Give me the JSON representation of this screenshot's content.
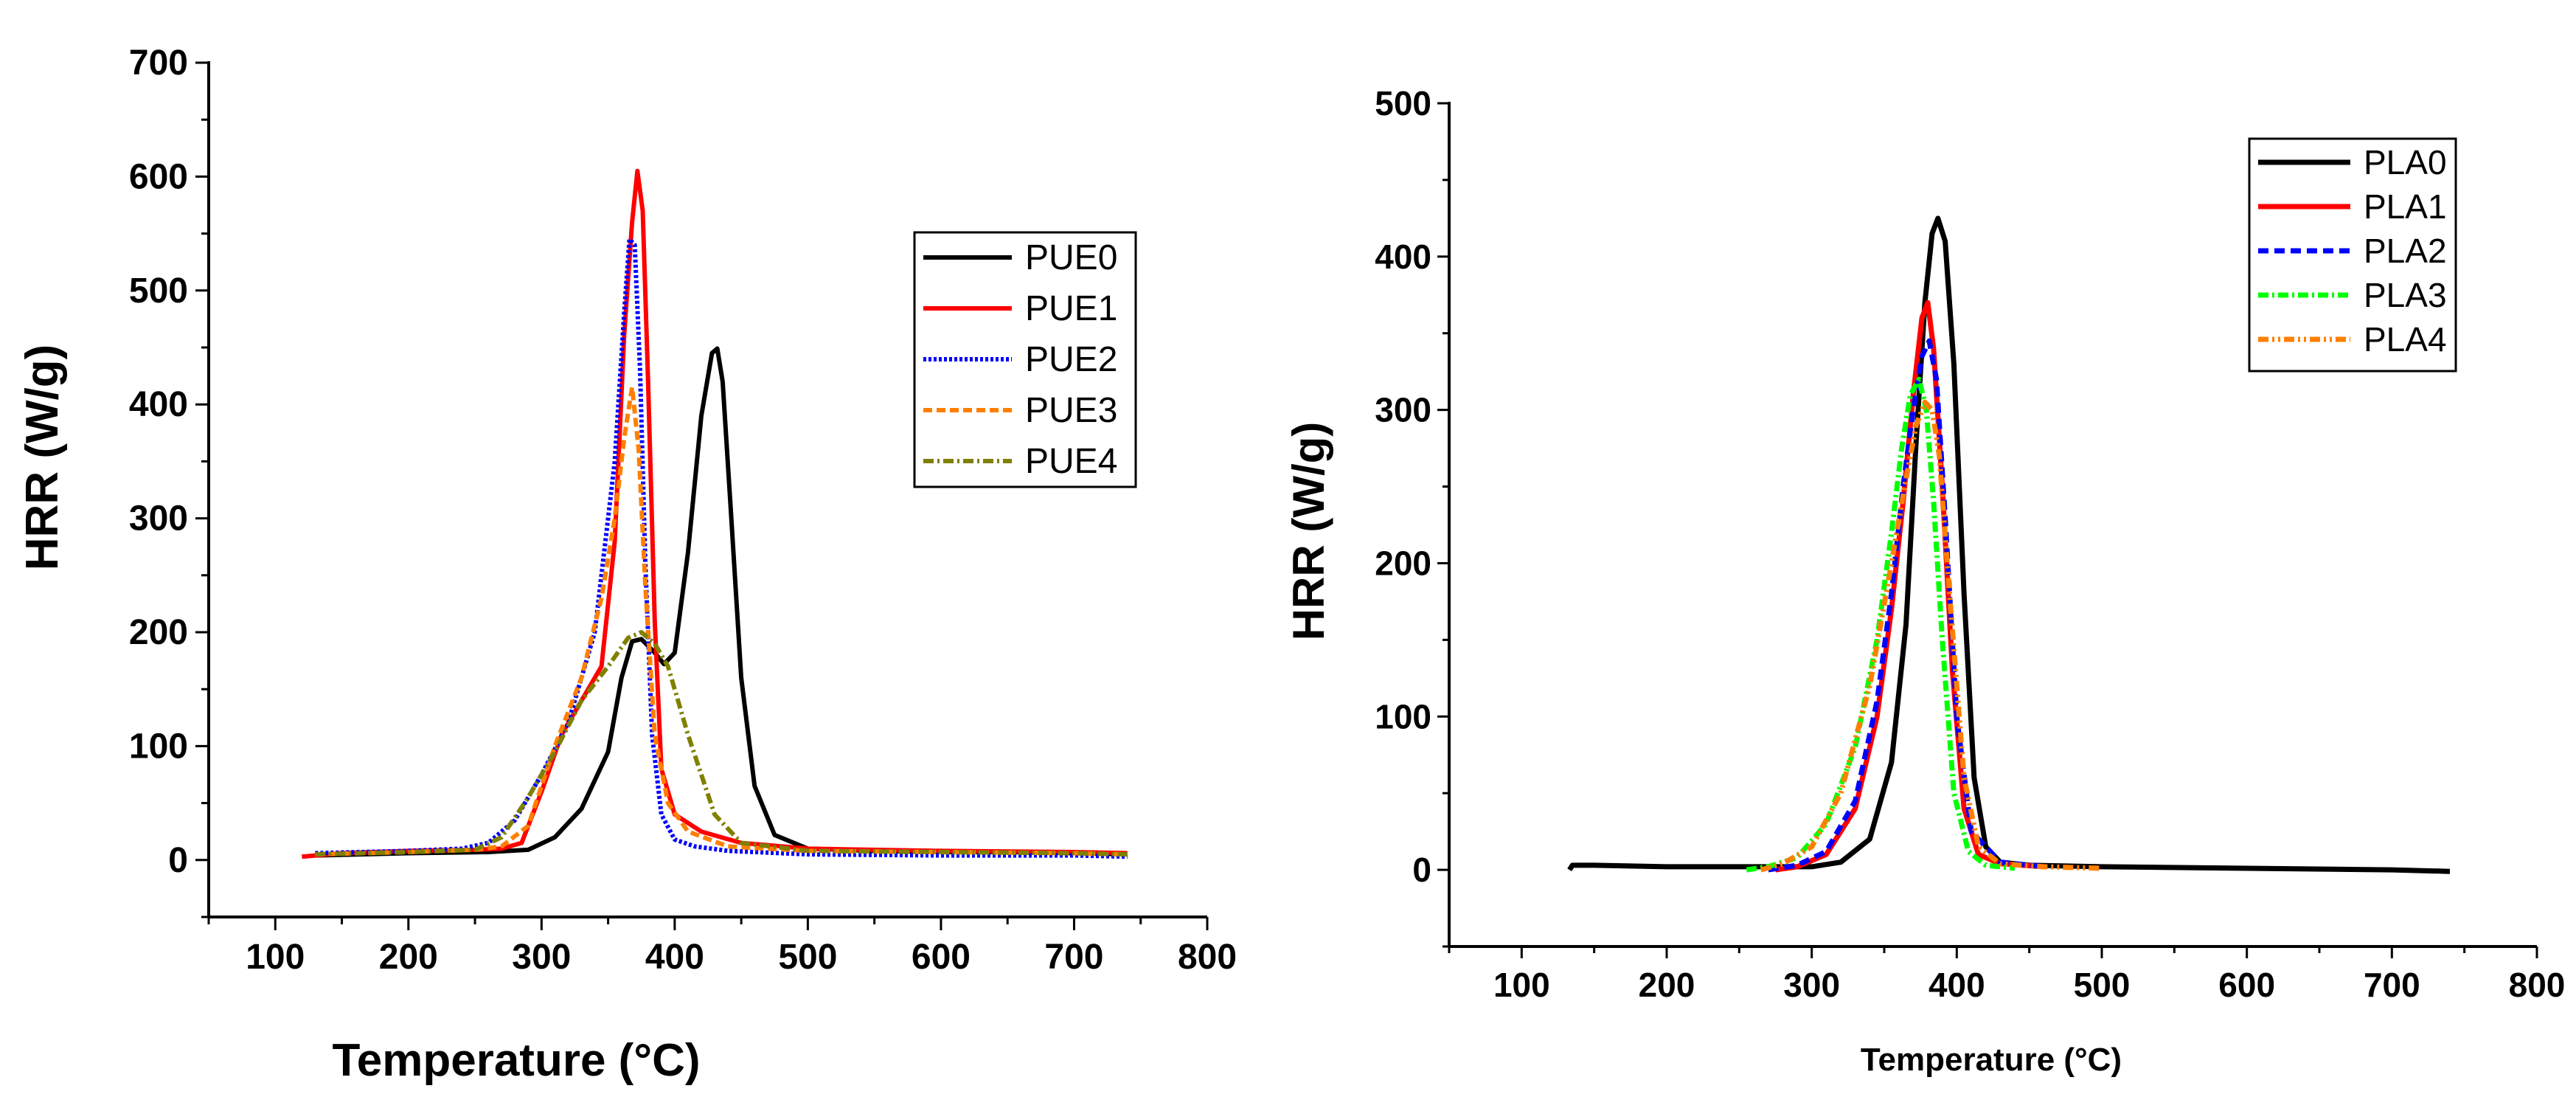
{
  "chart_data": [
    {
      "type": "line",
      "title": "",
      "xlabel": "Temperature (°C)",
      "ylabel": "HRR (W/g)",
      "xlim": [
        50,
        800
      ],
      "ylim": [
        -50,
        700
      ],
      "xticks": [
        100,
        200,
        300,
        400,
        500,
        600,
        700,
        800
      ],
      "yticks": [
        0,
        100,
        200,
        300,
        400,
        500,
        600,
        700
      ],
      "xtick_labels": [
        "100",
        "200",
        "300",
        "400",
        "500",
        "600",
        "700",
        "800"
      ],
      "ytick_labels": [
        "0",
        "100",
        "200",
        "300",
        "400",
        "500",
        "600",
        "700"
      ],
      "legend_position": "upper-right",
      "grid": false,
      "series": [
        {
          "name": "PUE0",
          "color": "#000000",
          "dash": "solid",
          "x": [
            130,
            200,
            260,
            290,
            310,
            330,
            350,
            360,
            368,
            375,
            385,
            392,
            400,
            410,
            420,
            428,
            432,
            436,
            442,
            450,
            460,
            475,
            500,
            550,
            600,
            650,
            700,
            740
          ],
          "y": [
            4,
            6,
            7,
            9,
            20,
            45,
            95,
            160,
            192,
            194,
            182,
            172,
            182,
            270,
            390,
            445,
            449,
            420,
            310,
            160,
            65,
            22,
            10,
            8,
            7,
            7,
            6,
            5
          ]
        },
        {
          "name": "PUE1",
          "color": "#ff0000",
          "dash": "solid",
          "x": [
            120,
            150,
            200,
            250,
            270,
            285,
            300,
            315,
            330,
            345,
            355,
            362,
            368,
            372,
            376,
            380,
            385,
            390,
            400,
            420,
            450,
            500,
            600,
            700,
            740
          ],
          "y": [
            3,
            6,
            8,
            9,
            10,
            15,
            60,
            110,
            140,
            170,
            280,
            460,
            560,
            605,
            570,
            420,
            210,
            80,
            40,
            25,
            15,
            10,
            8,
            7,
            6
          ]
        },
        {
          "name": "PUE2",
          "color": "#0000ff",
          "dash": "4,3",
          "x": [
            130,
            200,
            240,
            260,
            280,
            300,
            320,
            340,
            355,
            362,
            366,
            370,
            374,
            378,
            383,
            390,
            400,
            415,
            440,
            500,
            600,
            700,
            740
          ],
          "y": [
            6,
            8,
            10,
            15,
            35,
            75,
            120,
            200,
            350,
            480,
            545,
            540,
            430,
            260,
            110,
            40,
            18,
            12,
            8,
            5,
            4,
            4,
            3
          ]
        },
        {
          "name": "PUE3",
          "color": "#ff7f00",
          "dash": "12,6",
          "x": [
            130,
            200,
            250,
            270,
            290,
            310,
            330,
            345,
            355,
            362,
            368,
            373,
            378,
            385,
            395,
            410,
            440,
            500,
            600,
            700,
            740
          ],
          "y": [
            5,
            7,
            9,
            12,
            30,
            100,
            160,
            230,
            300,
            370,
            415,
            360,
            240,
            110,
            50,
            25,
            12,
            8,
            7,
            6,
            5
          ]
        },
        {
          "name": "PUE4",
          "color": "#808000",
          "dash": "14,5,3,5",
          "x": [
            130,
            200,
            250,
            270,
            290,
            310,
            330,
            350,
            365,
            375,
            385,
            395,
            410,
            430,
            450,
            500,
            600,
            700,
            740
          ],
          "y": [
            5,
            7,
            9,
            20,
            55,
            95,
            140,
            170,
            195,
            200,
            190,
            170,
            110,
            40,
            15,
            8,
            7,
            6,
            5
          ]
        }
      ]
    },
    {
      "type": "line",
      "title": "",
      "xlabel": "Temperature (°C)",
      "ylabel": "HRR (W/g)",
      "xlim": [
        50,
        800
      ],
      "ylim": [
        -50,
        500
      ],
      "xticks": [
        100,
        200,
        300,
        400,
        500,
        600,
        700,
        800
      ],
      "yticks": [
        0,
        100,
        200,
        300,
        400,
        500
      ],
      "xtick_labels": [
        "100",
        "200",
        "300",
        "400",
        "500",
        "600",
        "700",
        "800"
      ],
      "ytick_labels": [
        "0",
        "100",
        "200",
        "300",
        "400",
        "500"
      ],
      "legend_position": "upper-right",
      "grid": false,
      "series": [
        {
          "name": "PLA0",
          "color": "#000000",
          "dash": "solid",
          "x": [
            133,
            135,
            150,
            200,
            250,
            300,
            320,
            340,
            355,
            365,
            372,
            378,
            383,
            387,
            392,
            398,
            405,
            412,
            420,
            430,
            450,
            500,
            600,
            700,
            740
          ],
          "y": [
            0,
            3,
            3,
            2,
            2,
            2,
            5,
            20,
            70,
            160,
            280,
            370,
            415,
            425,
            410,
            330,
            180,
            60,
            15,
            5,
            3,
            2,
            1,
            0,
            -1
          ]
        },
        {
          "name": "PLA1",
          "color": "#ff0000",
          "dash": "solid",
          "x": [
            275,
            290,
            310,
            330,
            345,
            355,
            363,
            370,
            376,
            380,
            384,
            390,
            397,
            405,
            415,
            430,
            460
          ],
          "y": [
            0,
            2,
            10,
            40,
            100,
            170,
            240,
            310,
            360,
            370,
            340,
            250,
            130,
            40,
            10,
            4,
            2
          ]
        },
        {
          "name": "PLA2",
          "color": "#0000ff",
          "dash": "14,8",
          "x": [
            270,
            290,
            310,
            330,
            345,
            355,
            363,
            370,
            376,
            381,
            386,
            392,
            400,
            410,
            430,
            460
          ],
          "y": [
            0,
            3,
            12,
            45,
            110,
            180,
            250,
            300,
            335,
            345,
            320,
            230,
            100,
            25,
            5,
            2
          ]
        },
        {
          "name": "PLA3",
          "color": "#00ff00",
          "dash": "14,5,3,5",
          "x": [
            255,
            270,
            290,
            310,
            330,
            345,
            355,
            362,
            368,
            374,
            379,
            384,
            390,
            398,
            408,
            420,
            440
          ],
          "y": [
            0,
            2,
            8,
            30,
            80,
            150,
            220,
            275,
            310,
            320,
            300,
            240,
            150,
            50,
            12,
            3,
            1
          ]
        },
        {
          "name": "PLA4",
          "color": "#ff7f00",
          "dash": "14,5,3,5,3,5",
          "x": [
            265,
            280,
            300,
            320,
            340,
            355,
            365,
            372,
            378,
            383,
            388,
            395,
            405,
            415,
            430,
            460,
            500
          ],
          "y": [
            0,
            4,
            15,
            50,
            120,
            200,
            255,
            290,
            305,
            300,
            270,
            180,
            60,
            15,
            4,
            2,
            1
          ]
        }
      ]
    }
  ]
}
